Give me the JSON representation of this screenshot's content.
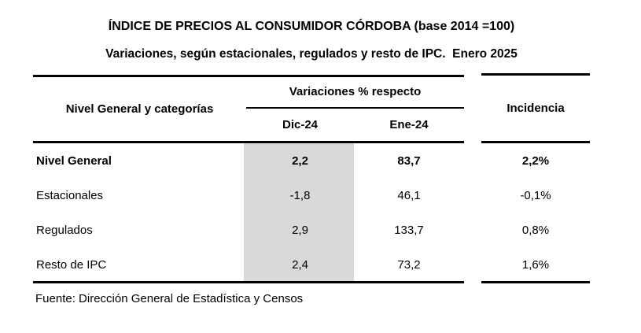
{
  "header": {
    "title": "ÍNDICE DE PRECIOS AL CONSUMIDOR CÓRDOBA (base 2014 =100)",
    "subtitle": "Variaciones, según estacionales, regulados y resto de IPC.  Enero 2025"
  },
  "table": {
    "row_header": "Nivel General y categorías",
    "group_header": "Variaciones % respecto",
    "col_dic": "Dic-24",
    "col_ene": "Ene-24",
    "col_incidencia": "Incidencia",
    "highlight_color": "#d9d9d9",
    "rows": [
      {
        "label": "Nivel General",
        "dic": "2,2",
        "ene": "83,7",
        "incidencia": "2,2%"
      },
      {
        "label": "Estacionales",
        "dic": "-1,8",
        "ene": "46,1",
        "incidencia": "-0,1%"
      },
      {
        "label": "Regulados",
        "dic": "2,9",
        "ene": "133,7",
        "incidencia": "0,8%"
      },
      {
        "label": "Resto de IPC",
        "dic": "2,4",
        "ene": "73,2",
        "incidencia": "1,6%"
      }
    ]
  },
  "footer": {
    "source": "Fuente: Dirección General de Estadística y Censos"
  },
  "chart_data": {
    "type": "table",
    "title": "ÍNDICE DE PRECIOS AL CONSUMIDOR CÓRDOBA (base 2014 =100)",
    "subtitle": "Variaciones, según estacionales, regulados y resto de IPC. Enero 2025",
    "columns": [
      "Nivel General y categorías",
      "Variaciones % respecto Dic-24",
      "Variaciones % respecto Ene-24",
      "Incidencia"
    ],
    "rows": [
      [
        "Nivel General",
        2.2,
        83.7,
        "2,2%"
      ],
      [
        "Estacionales",
        -1.8,
        46.1,
        "-0,1%"
      ],
      [
        "Regulados",
        2.9,
        133.7,
        "0,8%"
      ],
      [
        "Resto de IPC",
        2.4,
        73.2,
        "1,6%"
      ]
    ],
    "source": "Fuente: Dirección General de Estadística y Censos"
  }
}
